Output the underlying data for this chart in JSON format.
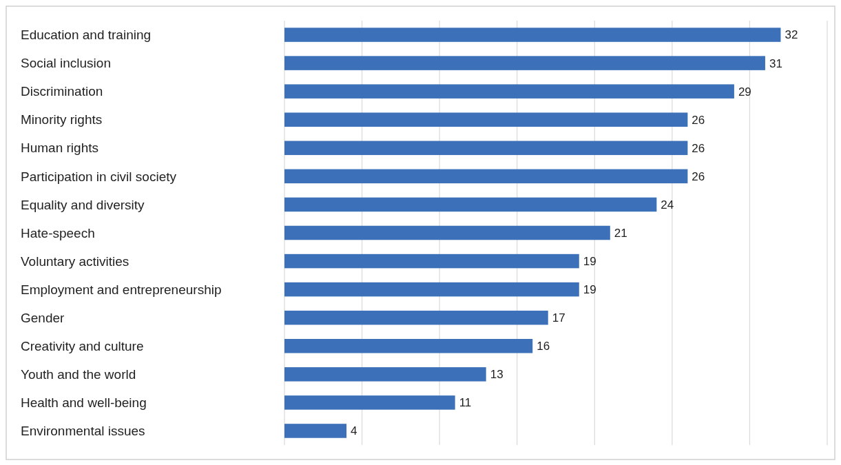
{
  "chart_data": {
    "type": "bar",
    "orientation": "horizontal",
    "categories": [
      "Education and training",
      "Social inclusion",
      "Discrimination",
      "Minority rights",
      "Human rights",
      "Participation in civil society",
      "Equality and diversity",
      "Hate-speech",
      "Voluntary activities",
      "Employment and entrepreneurship",
      "Gender",
      "Creativity and culture",
      "Youth and the world",
      "Health and well-being",
      "Environmental issues"
    ],
    "values": [
      32,
      31,
      29,
      26,
      26,
      26,
      24,
      21,
      19,
      19,
      17,
      16,
      13,
      11,
      4
    ],
    "color": "#3c70b9",
    "xlim": [
      0,
      35
    ],
    "xticks": [
      {
        "value": 0,
        "label": null
      },
      {
        "value": 5,
        "label": null
      },
      {
        "value": 10,
        "label": null
      },
      {
        "value": 15,
        "label": null
      },
      {
        "value": 20,
        "label": null
      },
      {
        "value": 25,
        "label": null
      },
      {
        "value": 30,
        "label": null
      },
      {
        "value": 35,
        "label": null
      }
    ],
    "tick_labels": "y",
    "grid": "x",
    "data_labels": true
  }
}
